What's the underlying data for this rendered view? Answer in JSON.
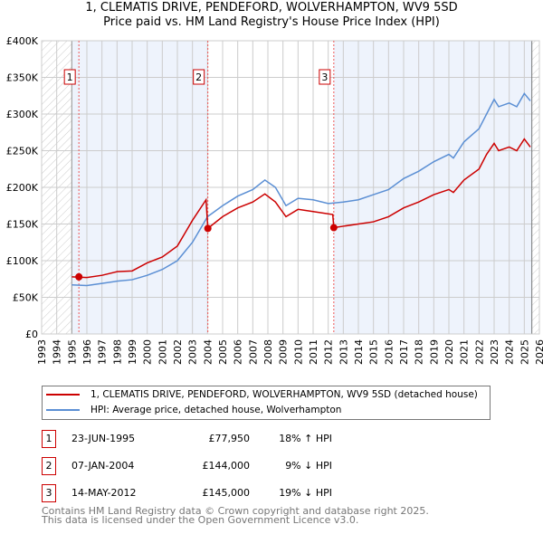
{
  "chart_data": {
    "type": "line",
    "title": "1, CLEMATIS DRIVE, PENDEFORD, WOLVERHAMPTON, WV9 5SD",
    "subtitle": "Price paid vs. HM Land Registry's House Price Index (HPI)",
    "xlim": [
      1993,
      2026
    ],
    "ylim": [
      0,
      400000
    ],
    "x_ticks": [
      "1993",
      "1994",
      "1995",
      "1996",
      "1997",
      "1998",
      "1999",
      "2000",
      "2001",
      "2002",
      "2003",
      "2004",
      "2005",
      "2006",
      "2007",
      "2008",
      "2009",
      "2010",
      "2011",
      "2012",
      "2013",
      "2014",
      "2015",
      "2016",
      "2017",
      "2018",
      "2019",
      "2020",
      "2021",
      "2022",
      "2023",
      "2024",
      "2025",
      "2026"
    ],
    "y_ticks": [
      {
        "v": 0,
        "label": "£0"
      },
      {
        "v": 50000,
        "label": "£50K"
      },
      {
        "v": 100000,
        "label": "£100K"
      },
      {
        "v": 150000,
        "label": "£150K"
      },
      {
        "v": 200000,
        "label": "£200K"
      },
      {
        "v": 250000,
        "label": "£250K"
      },
      {
        "v": 300000,
        "label": "£300K"
      },
      {
        "v": 350000,
        "label": "£350K"
      },
      {
        "v": 400000,
        "label": "£400K"
      }
    ],
    "grid": true,
    "series": [
      {
        "name": "1, CLEMATIS DRIVE, PENDEFORD, WOLVERHAMPTON, WV9 5SD (detached house)",
        "color": "#cc0000",
        "x": [
          1995.0,
          1996,
          1997,
          1998,
          1999,
          2000,
          2001,
          2002,
          2003,
          2003.9,
          2004.02,
          2005,
          2006,
          2007,
          2007.8,
          2008.5,
          2009.2,
          2010,
          2011,
          2012.3,
          2012.37,
          2013,
          2014,
          2015,
          2016,
          2017,
          2018,
          2019,
          2020,
          2020.3,
          2021,
          2022,
          2022.5,
          2023,
          2023.3,
          2024,
          2024.5,
          2025,
          2025.4
        ],
        "y": [
          78000,
          77000,
          80000,
          85000,
          86000,
          97000,
          105000,
          120000,
          155000,
          183000,
          144000,
          160000,
          172000,
          180000,
          191000,
          180000,
          160000,
          170000,
          167000,
          163000,
          145000,
          147000,
          150000,
          153000,
          160000,
          172000,
          180000,
          190000,
          197000,
          193000,
          210000,
          225000,
          245000,
          260000,
          250000,
          255000,
          250000,
          266000,
          255000
        ]
      },
      {
        "name": "HPI: Average price, detached house, Wolverhampton",
        "color": "#5b8fd4",
        "x": [
          1995.0,
          1996,
          1997,
          1998,
          1999,
          2000,
          2001,
          2002,
          2003,
          2004,
          2005,
          2006,
          2007,
          2007.8,
          2008.5,
          2009.2,
          2010,
          2011,
          2012,
          2013,
          2014,
          2015,
          2016,
          2017,
          2018,
          2019,
          2020,
          2020.3,
          2021,
          2022,
          2022.5,
          2023,
          2023.3,
          2024,
          2024.5,
          2025,
          2025.4
        ],
        "y": [
          67000,
          66000,
          69000,
          72000,
          74000,
          80000,
          88000,
          100000,
          125000,
          160000,
          175000,
          188000,
          197000,
          210000,
          200000,
          175000,
          185000,
          183000,
          178000,
          180000,
          183000,
          190000,
          197000,
          212000,
          222000,
          235000,
          245000,
          240000,
          262000,
          280000,
          300000,
          320000,
          310000,
          315000,
          310000,
          328000,
          318000
        ]
      }
    ],
    "sales": [
      {
        "n": "1",
        "x": 1995.47,
        "y": 77950,
        "date": "23-JUN-1995",
        "price": "£77,950",
        "hpi": "18% ↑ HPI"
      },
      {
        "n": "2",
        "x": 2004.02,
        "y": 144000,
        "date": "07-JAN-2004",
        "price": "£144,000",
        "hpi": "9% ↓ HPI"
      },
      {
        "n": "3",
        "x": 2012.37,
        "y": 145000,
        "date": "14-MAY-2012",
        "price": "£145,000",
        "hpi": "19% ↓ HPI"
      }
    ]
  },
  "footer": {
    "line1": "Contains HM Land Registry data © Crown copyright and database right 2025.",
    "line2": "This data is licensed under the Open Government Licence v3.0."
  }
}
